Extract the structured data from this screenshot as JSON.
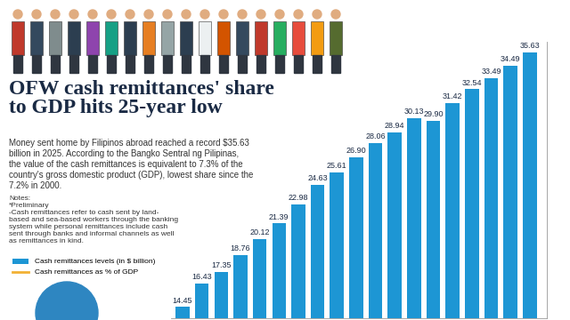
{
  "chart_data": {
    "type": "bar",
    "title": "OFW cash remittances' share to GDP hits 25-year low",
    "subtitle": "Money sent home by Filipinos abroad reached a record $35.63 billion in 2025. According to the Bangko Sentral ng Pilipinas, the value of the cash remittances is equivalent to 7.3% of the country's gross domestic product (GDP), lowest share since the 7.2% in 2000.",
    "notes": [
      "Notes:",
      "*Preliminary",
      "-Cash remittances refer to cash sent by land-based and sea-based workers through the banking system while personal remittances include cash sent through banks and informal channels as well as remittances in kind."
    ],
    "categories": [
      null,
      null,
      null,
      null,
      null,
      null,
      null,
      null,
      null,
      null,
      null,
      null,
      null,
      null,
      null,
      null,
      null,
      null,
      null
    ],
    "series": [
      {
        "name": "Cash remittances levels (in $ billion)",
        "type": "bar",
        "color": "#1d96d4",
        "values": [
          14.45,
          16.43,
          17.35,
          18.76,
          20.12,
          21.39,
          22.98,
          24.63,
          25.61,
          26.9,
          28.06,
          28.94,
          30.13,
          29.9,
          31.42,
          32.54,
          33.49,
          34.49,
          35.63
        ],
        "value_labels": [
          "14.45",
          "16.43",
          "17.35",
          "18.76",
          "20.12",
          "21.39",
          "22.98",
          "24.63",
          "25.61",
          "26.90",
          "28.06",
          "28.94",
          "30.13",
          "29.90",
          "31.42",
          "32.54",
          "33.49",
          "34.49",
          "35.63"
        ]
      },
      {
        "name": "Cash remittances as % of GDP",
        "type": "line",
        "color": "#f2b134",
        "values": [
          null,
          null,
          null,
          null,
          null,
          null,
          null,
          null,
          null,
          null,
          null,
          null,
          null,
          null,
          null,
          null,
          null,
          null,
          null
        ]
      }
    ],
    "ylim": [
      13.5,
      36.5
    ],
    "yticks": [],
    "tick_labels": false,
    "data_labels": true,
    "legend": "lower left",
    "grid": false
  }
}
